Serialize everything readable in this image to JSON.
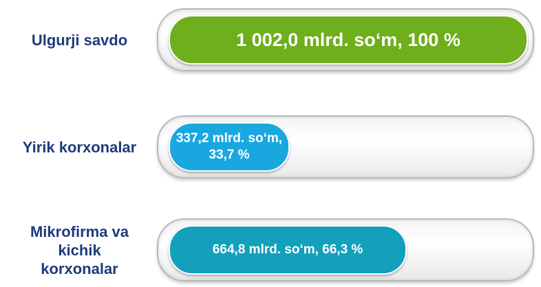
{
  "chart_data": {
    "type": "bar",
    "categories": [
      "Ulgurji savdo",
      "Yirik korxonalar",
      "Mikrofirma va kichik korxonalar"
    ],
    "values": [
      100,
      33.7,
      66.3
    ],
    "value_labels": [
      "1 002,0 mlrd. so‘m, 100 %",
      "337,2 mlrd. so‘m, 33,7 %",
      "664,8 mlrd. so‘m, 66,3 %"
    ],
    "colors": [
      "#6fae1c",
      "#1aa7e0",
      "#12a0bb"
    ],
    "xlim": [
      0,
      100
    ]
  }
}
